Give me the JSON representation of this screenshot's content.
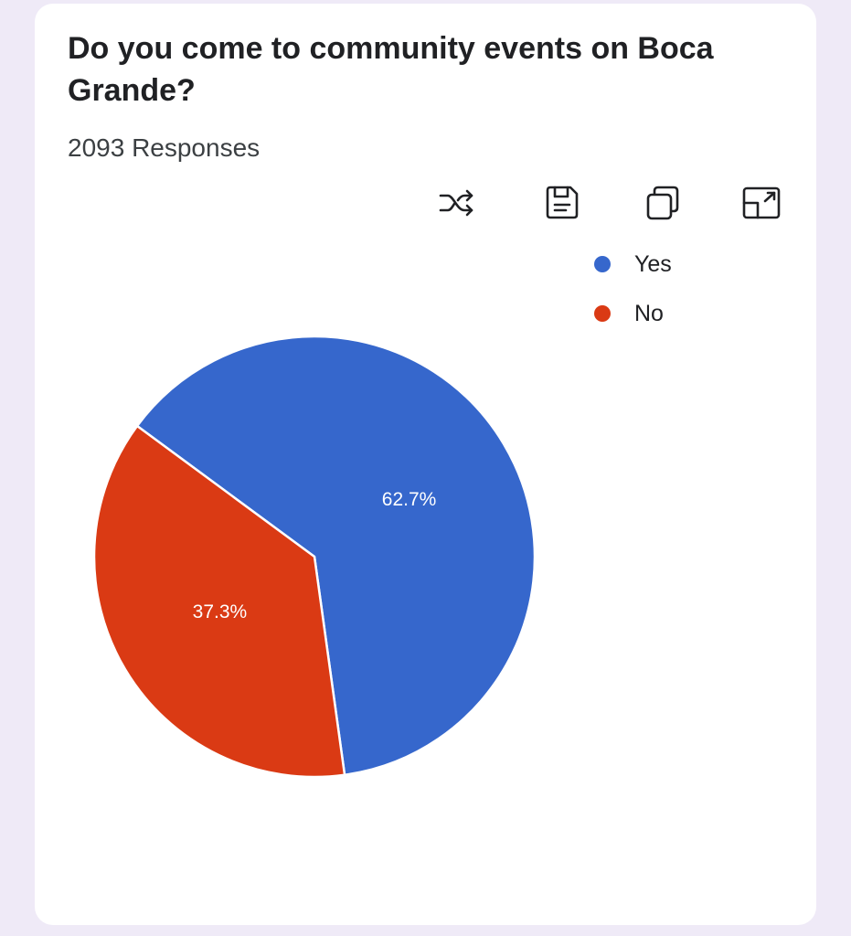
{
  "question": {
    "title": "Do you come to community events on Boca Grande?",
    "responses": "2093 Responses"
  },
  "toolbar": {
    "icons": [
      "shuffle-icon",
      "save-icon",
      "copy-icon",
      "expand-icon"
    ]
  },
  "colors": {
    "yes": "#3667cc",
    "no": "#da3a14"
  },
  "chart_data": {
    "type": "pie",
    "title": "Do you come to community events on Boca Grande?",
    "legend_position": "top-right",
    "slices": [
      {
        "name": "Yes",
        "value": 62.7,
        "label": "62.7%",
        "color": "#3667cc"
      },
      {
        "name": "No",
        "value": 37.3,
        "label": "37.3%",
        "color": "#da3a14"
      }
    ]
  }
}
